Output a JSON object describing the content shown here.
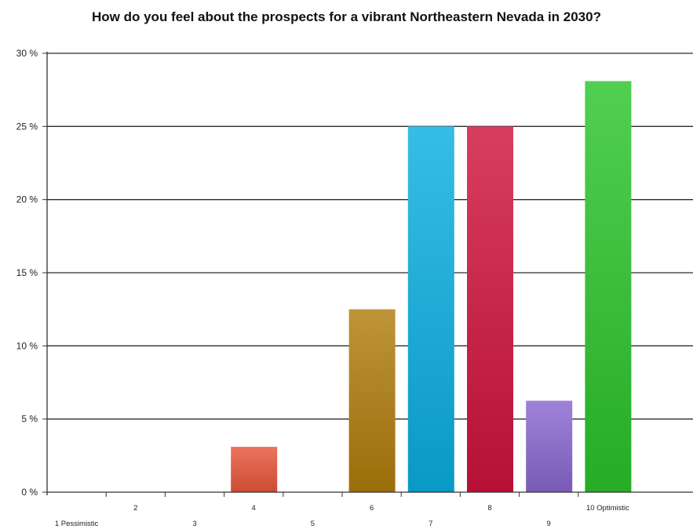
{
  "chart_data": {
    "type": "bar",
    "title": "How do you feel about the prospects for a vibrant Northeastern Nevada in 2030?",
    "categories": [
      "1 Pessimistic",
      "2",
      "3",
      "4",
      "5",
      "6",
      "7",
      "8",
      "9",
      "10 Optimistic"
    ],
    "values": [
      0,
      0,
      0,
      3.1,
      0,
      12.5,
      25,
      25,
      6.25,
      28.1
    ],
    "colors": [
      "#888888",
      "#888888",
      "#888888",
      "#e8553a",
      "#888888",
      "#b07d0c",
      "#0aaee0",
      "#cf123d",
      "#8a67cf",
      "#2bc42b"
    ],
    "ylim": [
      0,
      30
    ],
    "yticks": [
      0,
      5,
      10,
      15,
      20,
      25,
      30
    ],
    "ytick_suffix": " %",
    "xlabel": "",
    "ylabel": "",
    "grid": true,
    "legend": "none"
  }
}
